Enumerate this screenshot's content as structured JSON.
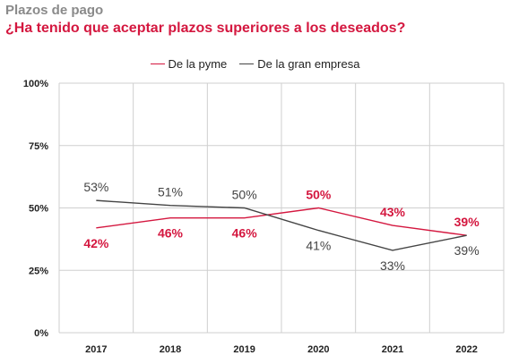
{
  "header": {
    "title": "Plazos de pago",
    "subtitle": "¿Ha tenido que aceptar plazos superiores a los deseados?"
  },
  "chart_data": {
    "type": "line",
    "categories": [
      "2017",
      "2018",
      "2019",
      "2020",
      "2021",
      "2022"
    ],
    "ylim": [
      0,
      100
    ],
    "yticks": [
      0,
      25,
      50,
      75,
      100
    ],
    "ytick_labels": [
      "0%",
      "25%",
      "50%",
      "75%",
      "100%"
    ],
    "grid": true,
    "legend_position": "top-center",
    "series": [
      {
        "name": "De la pyme",
        "color": "#d4173f",
        "values": [
          42,
          46,
          46,
          50,
          43,
          39
        ],
        "labels": [
          "42%",
          "46%",
          "46%",
          "50%",
          "43%",
          "39%"
        ],
        "label_side": [
          "below",
          "below",
          "below",
          "above",
          "above",
          "above"
        ]
      },
      {
        "name": "De la gran empresa",
        "color": "#444444",
        "values": [
          53,
          51,
          50,
          41,
          33,
          39
        ],
        "labels": [
          "53%",
          "51%",
          "50%",
          "41%",
          "33%",
          "39%"
        ],
        "label_side": [
          "above",
          "above",
          "above",
          "below",
          "below",
          "below"
        ]
      }
    ]
  }
}
